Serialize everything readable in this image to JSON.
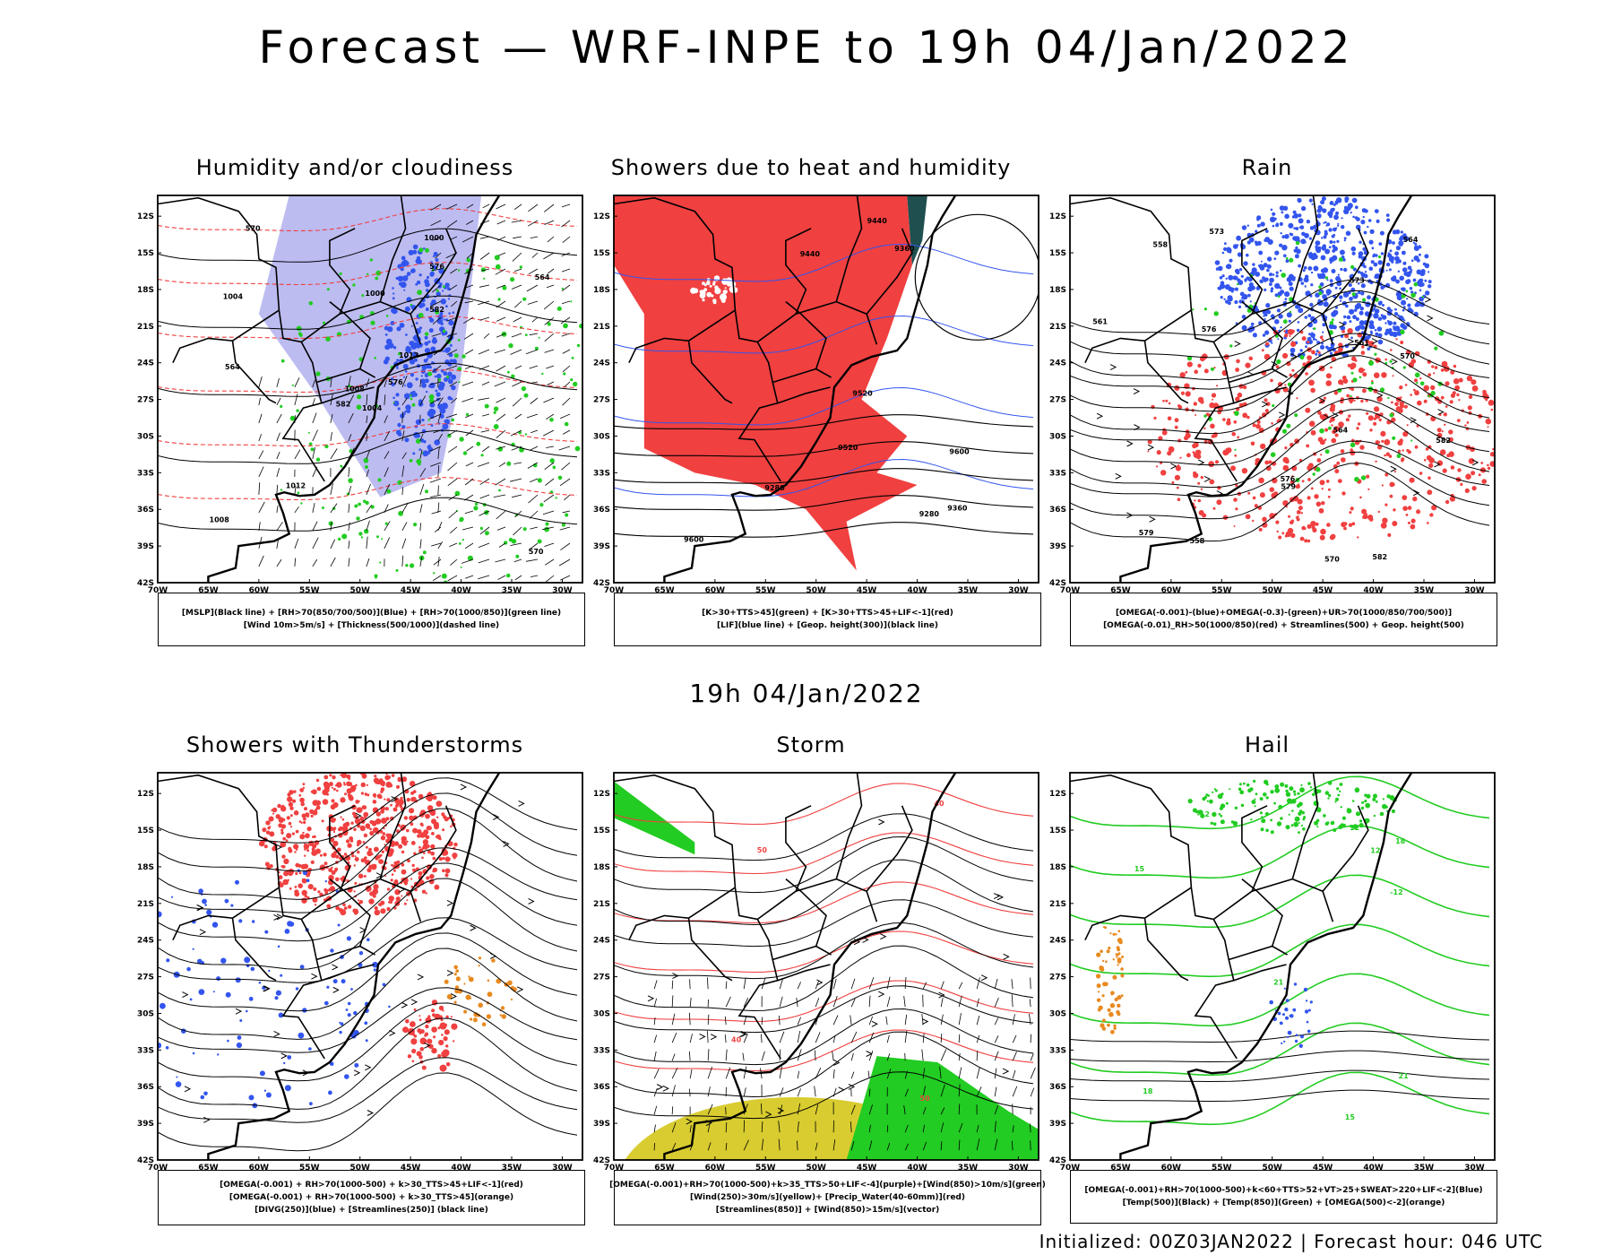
{
  "title": "Forecast — WRF-INPE to 19h 04/Jan/2022",
  "subtitle": "19h 04/Jan/2022",
  "footer": "Initialized: 00Z03JAN2022 | Forecast hour: 046 UTC",
  "axes": {
    "lat_labels": [
      "12S",
      "15S",
      "18S",
      "21S",
      "24S",
      "27S",
      "30S",
      "33S",
      "36S",
      "39S",
      "42S"
    ],
    "lon_labels": [
      "70W",
      "65W",
      "60W",
      "55W",
      "50W",
      "45W",
      "40W",
      "35W",
      "30W"
    ]
  },
  "colors": {
    "red": "#f04040",
    "green": "#22cc22",
    "blue": "#3355ee",
    "lavender": "#b0b0ee",
    "teal": "#1f4f4f",
    "yellow": "#d8cc30",
    "orange": "#e88a20",
    "purple": "#9b20c0"
  },
  "panels": [
    {
      "title": "Humidity and/or cloudiness",
      "legend": [
        "[MSLP](Black line) + [RH>70(850/700/500)](Blue) + [RH>70(1000/850)](green line)",
        "[Wind 10m>5m/s] + [Thickness(500/1000)](dashed line)"
      ],
      "labels": [
        "1004",
        "1008",
        "1012",
        "1000",
        "576",
        "570",
        "564",
        "582"
      ]
    },
    {
      "title": "Showers due to heat and humidity",
      "legend": [
        "[K>30+TTS>45](green) + [K>30+TTS>45+LIF<-1](red)",
        "[LIF](blue line) + [Geop. height(300)](black line)"
      ],
      "labels": [
        "9600",
        "9520",
        "9440",
        "9360",
        "9280"
      ]
    },
    {
      "title": "Rain",
      "legend": [
        "[OMEGA(-0.001)-(blue)+OMEGA(-0.3)-(green)+UR>70(1000/850/700/500)]",
        "[OMEGA(-0.01)_RH>50(1000/850)(red) + Streamlines(500) + Geop. height(500)"
      ],
      "labels": [
        "582",
        "579",
        "576",
        "573",
        "570",
        "564",
        "561",
        "558"
      ]
    },
    {
      "title": "Showers with Thunderstorms",
      "legend": [
        "[OMEGA(-0.001) + RH>70(1000-500) + k>30_TTS>45+LIF<-1](red)",
        "[OMEGA(-0.001) + RH>70(1000-500) + k>30_TTS>45](orange)",
        "[DIVG(250)](blue) + [Streamlines(250)] (black line)"
      ],
      "labels": []
    },
    {
      "title": "Storm",
      "legend": [
        "[OMEGA(-0.001)+RH>70(1000-500)+k>35_TTS>50+LIF<-4](purple)+[Wind(850)>10m/s](green)",
        "[Wind(250)>30m/s](yellow)+ [Precip_Water(40-60mm)](red)",
        "[Streamlines(850)] + [Wind(850)>15m/s](vector)"
      ],
      "labels": [
        "40",
        "50"
      ]
    },
    {
      "title": "Hail",
      "legend": [
        "[OMEGA(-0.001)+RH>70(1000-500)+k<60+TTS>52+VT>25+SWEAT>220+LIF<-2](Blue)",
        "[Temp(500)](Black) + [Temp(850)](Green) + [OMEGA(500)<-2](orange)"
      ],
      "labels": [
        "-12",
        "15",
        "18",
        "21",
        "12"
      ]
    }
  ]
}
